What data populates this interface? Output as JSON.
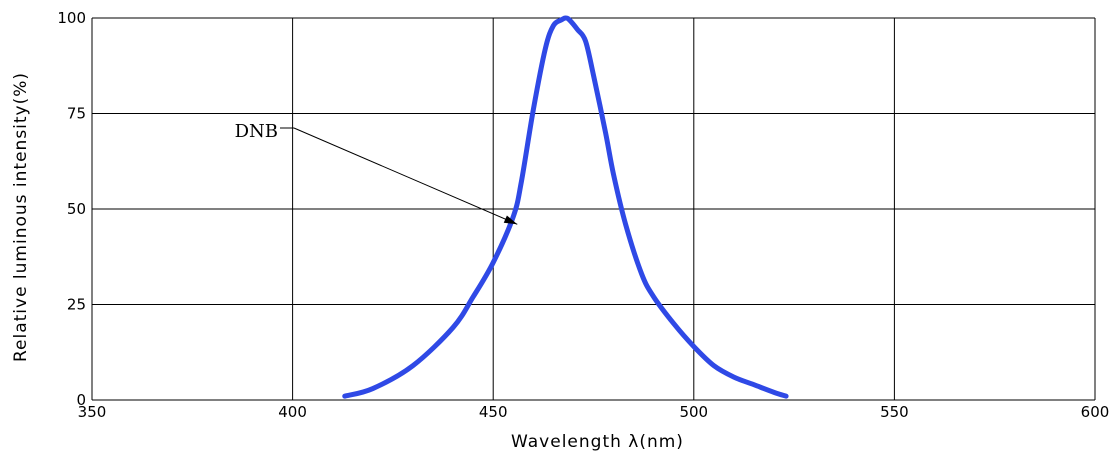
{
  "chart_data": {
    "type": "line",
    "title": "",
    "xlabel": "Wavelength  λ(nm)",
    "ylabel": "Relative luminous intensity(%)",
    "xlim": [
      350,
      600
    ],
    "ylim": [
      0,
      100
    ],
    "xticks": [
      "350",
      "400",
      "450",
      "500",
      "550",
      "600"
    ],
    "yticks": [
      "0",
      "25",
      "50",
      "75",
      "100"
    ],
    "grid": true,
    "line_color": "#2f49e6",
    "annotation": {
      "text": "DNB",
      "target": [
        456,
        46
      ]
    },
    "series": [
      {
        "name": "DNB",
        "x": [
          413,
          420,
          430,
          440,
          445,
          450,
          455,
          457,
          460,
          463,
          465,
          467,
          468,
          469,
          471,
          473,
          475,
          478,
          480,
          483,
          487,
          490,
          495,
          500,
          505,
          510,
          515,
          520,
          523
        ],
        "y": [
          1,
          3,
          9,
          19,
          27,
          36,
          48,
          57,
          76,
          92,
          98,
          99.5,
          100,
          99.5,
          97,
          94,
          85,
          70,
          59,
          46,
          33,
          27,
          20,
          14,
          9,
          6,
          4,
          2,
          1
        ]
      }
    ]
  }
}
